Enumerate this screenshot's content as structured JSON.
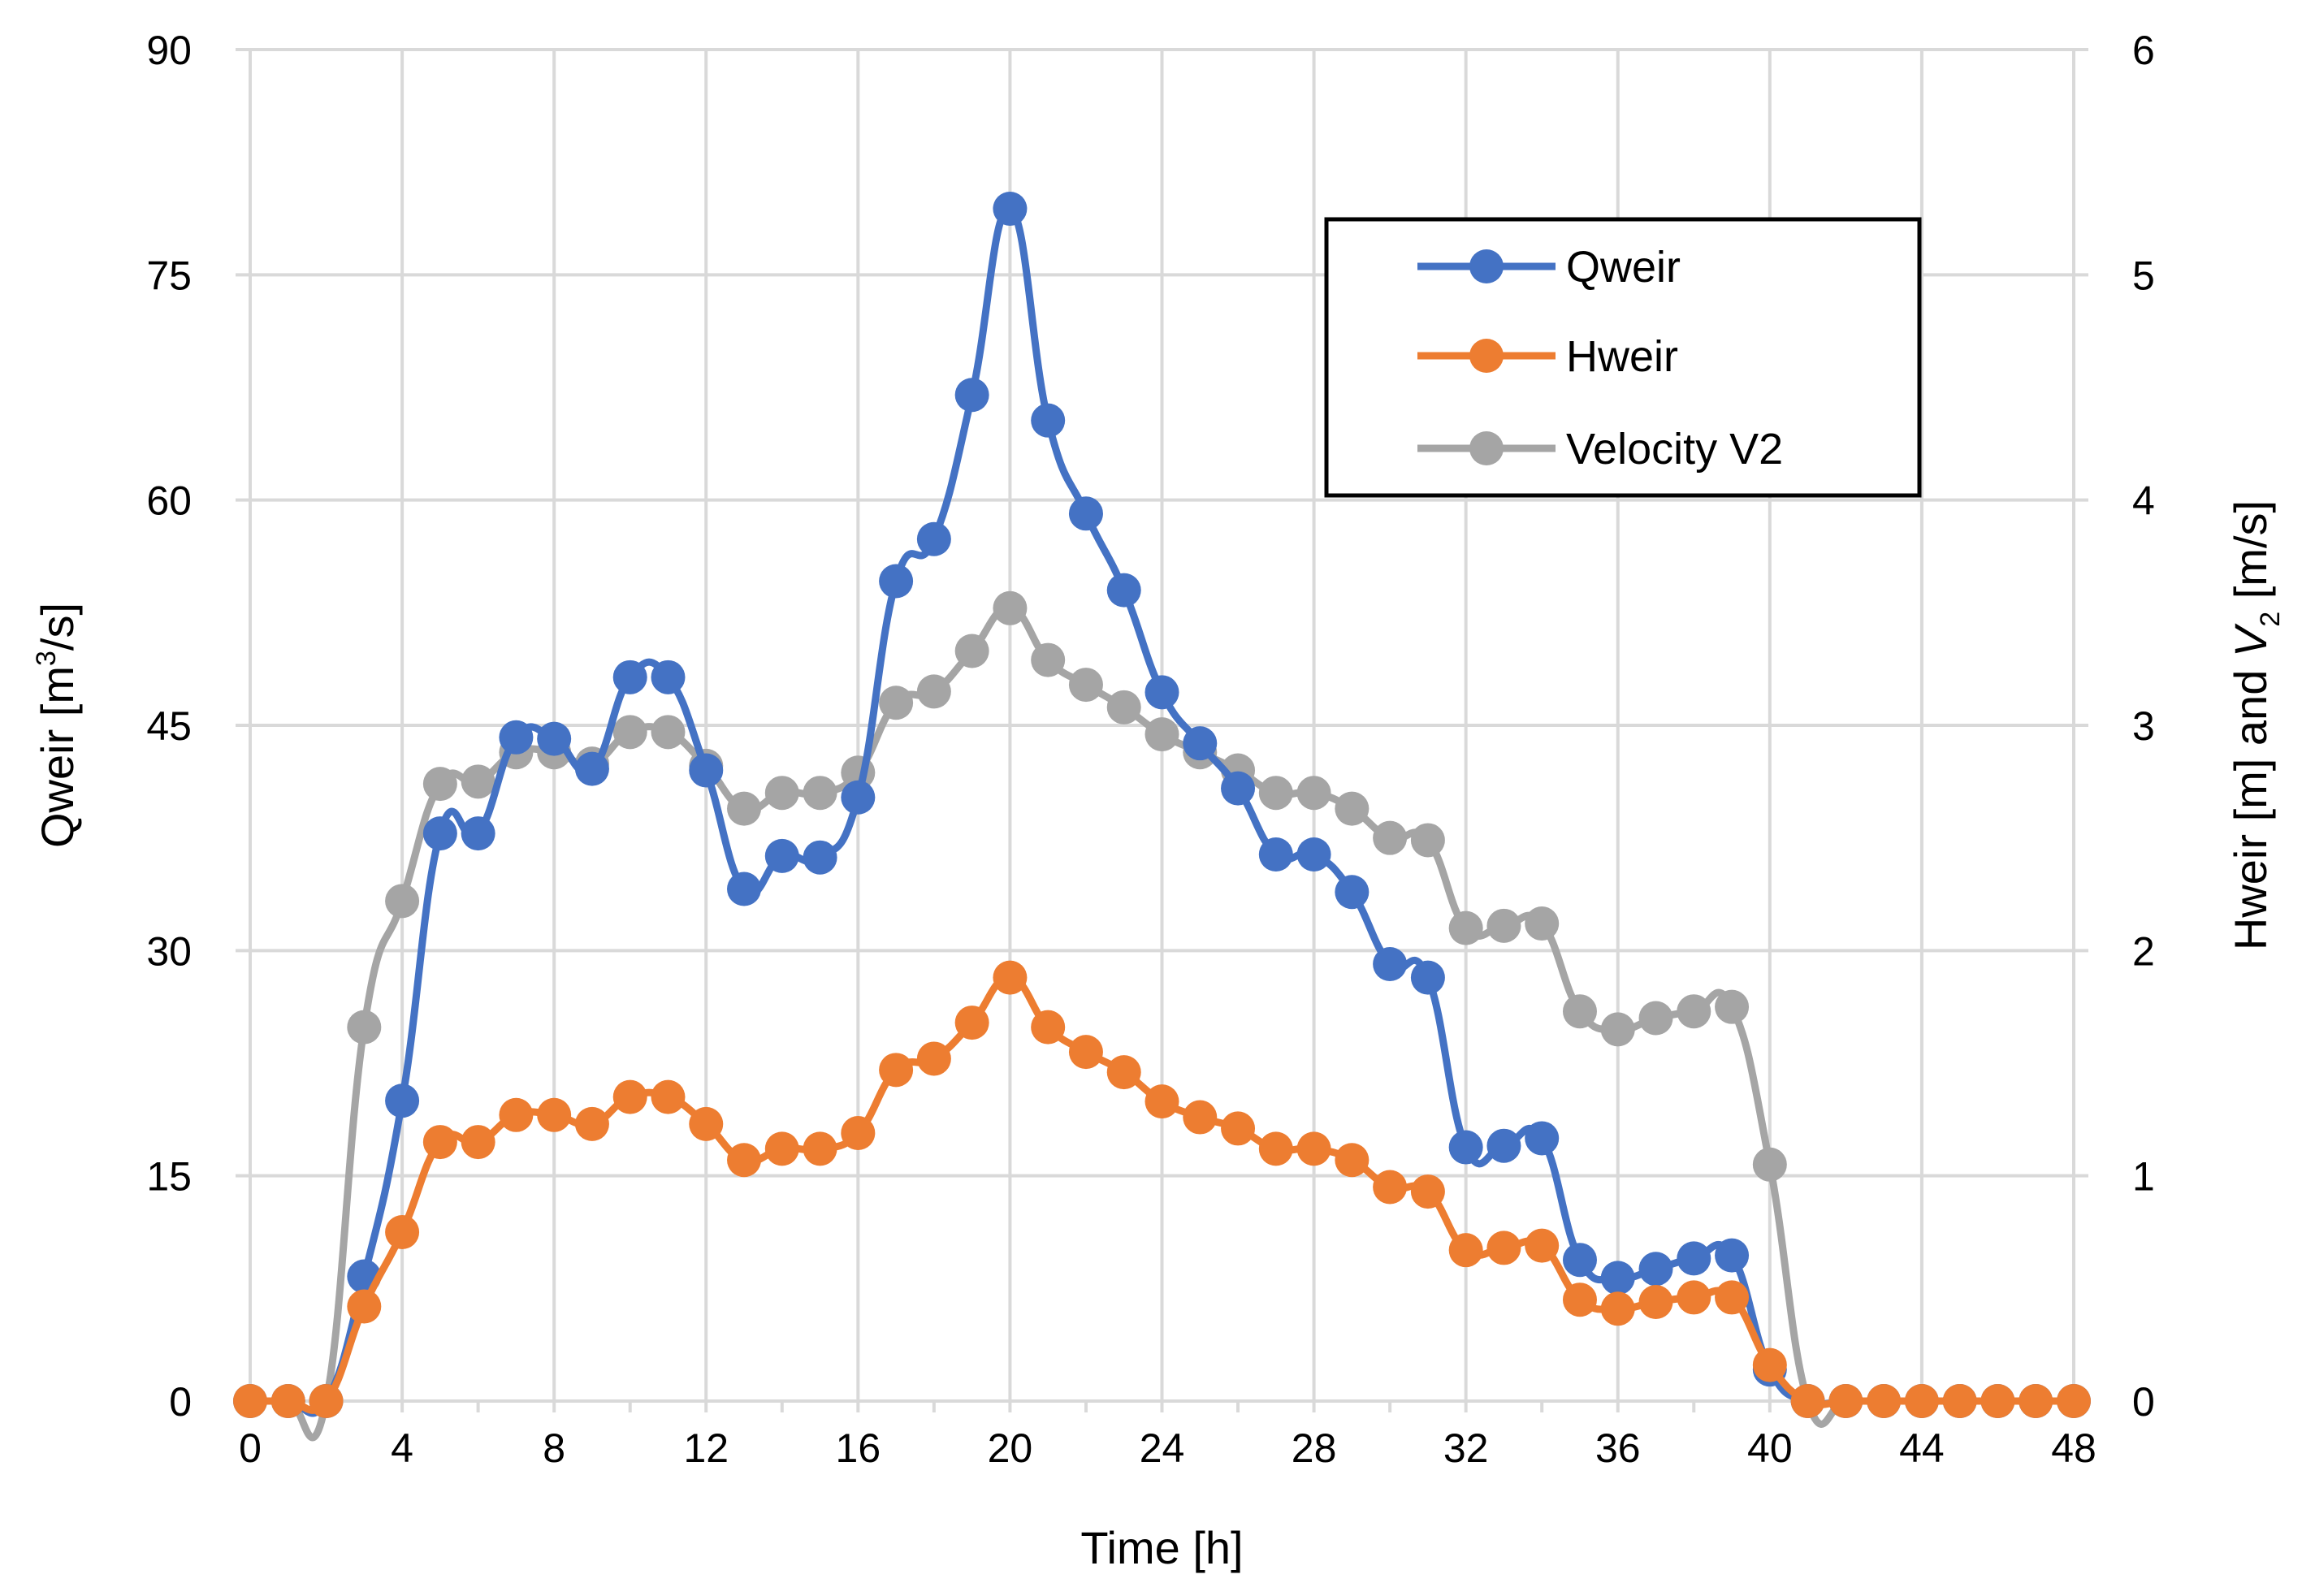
{
  "chart_data": {
    "type": "line",
    "title": "",
    "xlabel": "Time [h]",
    "ylabel_left": {
      "base": "Qweir [m",
      "sup": "3",
      "tail": "/s]"
    },
    "ylabel_right": {
      "a": "Hweir [m] and ",
      "v": "V",
      "sub": "2",
      "b": " [m/s]"
    },
    "xlim": [
      0,
      48
    ],
    "xticks": [
      0,
      4,
      8,
      12,
      16,
      20,
      24,
      28,
      32,
      36,
      40,
      44,
      48
    ],
    "ylim_left": [
      0,
      90
    ],
    "yticks_left": [
      0,
      15,
      30,
      45,
      60,
      75,
      90
    ],
    "ylim_right": [
      0,
      6
    ],
    "yticks_right": [
      0,
      1,
      2,
      3,
      4,
      5,
      6
    ],
    "grid": true,
    "legend_position": "top-right",
    "series": [
      {
        "name": "Qweir",
        "axis": "left",
        "color": "#4472C4",
        "x": [
          0,
          1,
          2,
          3,
          4,
          5,
          6,
          7,
          8,
          9,
          10,
          11,
          12,
          13,
          14,
          15,
          16,
          17,
          18,
          19,
          20,
          21,
          22,
          23,
          24,
          25,
          26,
          27,
          28,
          29,
          30,
          31,
          32,
          33,
          34,
          35,
          36,
          37,
          38,
          39,
          40,
          41,
          42,
          43,
          44,
          45,
          46,
          47,
          48
        ],
        "values": [
          0,
          0,
          0,
          8.3,
          20,
          37.8,
          37.8,
          44.2,
          44.1,
          42.1,
          48.2,
          48.2,
          42,
          34.1,
          36.3,
          36.2,
          40.2,
          54.6,
          57.4,
          67,
          79.4,
          65.3,
          59.1,
          54,
          47.2,
          43.8,
          40.8,
          36.4,
          36.4,
          33.9,
          29.1,
          28.2,
          16.9,
          17,
          17.5,
          9.4,
          8.2,
          8.8,
          9.5,
          9.7,
          2.1,
          0,
          0,
          0,
          0,
          0,
          0,
          0,
          0
        ]
      },
      {
        "name": "Hweir",
        "axis": "right",
        "color": "#ED7D31",
        "x": [
          0,
          1,
          2,
          3,
          4,
          5,
          6,
          7,
          8,
          9,
          10,
          11,
          12,
          13,
          14,
          15,
          16,
          17,
          18,
          19,
          20,
          21,
          22,
          23,
          24,
          25,
          26,
          27,
          28,
          29,
          30,
          31,
          32,
          33,
          34,
          35,
          36,
          37,
          38,
          39,
          40,
          41,
          42,
          43,
          44,
          45,
          46,
          47,
          48
        ],
        "values": [
          0,
          0,
          0,
          0.42,
          0.75,
          1.15,
          1.15,
          1.27,
          1.27,
          1.23,
          1.35,
          1.35,
          1.23,
          1.07,
          1.12,
          1.12,
          1.19,
          1.47,
          1.52,
          1.68,
          1.88,
          1.66,
          1.55,
          1.46,
          1.33,
          1.26,
          1.21,
          1.12,
          1.12,
          1.07,
          0.95,
          0.93,
          0.67,
          0.68,
          0.69,
          0.45,
          0.41,
          0.44,
          0.46,
          0.46,
          0.16,
          0,
          0,
          0,
          0,
          0,
          0,
          0,
          0
        ]
      },
      {
        "name": "Velocity V2",
        "axis": "right",
        "color": "#A5A5A5",
        "x": [
          0,
          1,
          2,
          3,
          4,
          5,
          6,
          7,
          8,
          9,
          10,
          11,
          12,
          13,
          14,
          15,
          16,
          17,
          18,
          19,
          20,
          21,
          22,
          23,
          24,
          25,
          26,
          27,
          28,
          29,
          30,
          31,
          32,
          33,
          34,
          35,
          36,
          37,
          38,
          39,
          40,
          41,
          42,
          43,
          44,
          45,
          46,
          47,
          48
        ],
        "values": [
          0,
          0,
          0,
          1.66,
          2.22,
          2.74,
          2.75,
          2.88,
          2.88,
          2.83,
          2.97,
          2.97,
          2.82,
          2.63,
          2.7,
          2.7,
          2.79,
          3.1,
          3.15,
          3.33,
          3.52,
          3.29,
          3.18,
          3.08,
          2.96,
          2.88,
          2.8,
          2.7,
          2.7,
          2.63,
          2.5,
          2.49,
          2.1,
          2.11,
          2.12,
          1.73,
          1.65,
          1.7,
          1.73,
          1.75,
          1.05,
          0,
          0,
          0,
          0,
          0,
          0,
          0,
          0
        ]
      }
    ]
  }
}
